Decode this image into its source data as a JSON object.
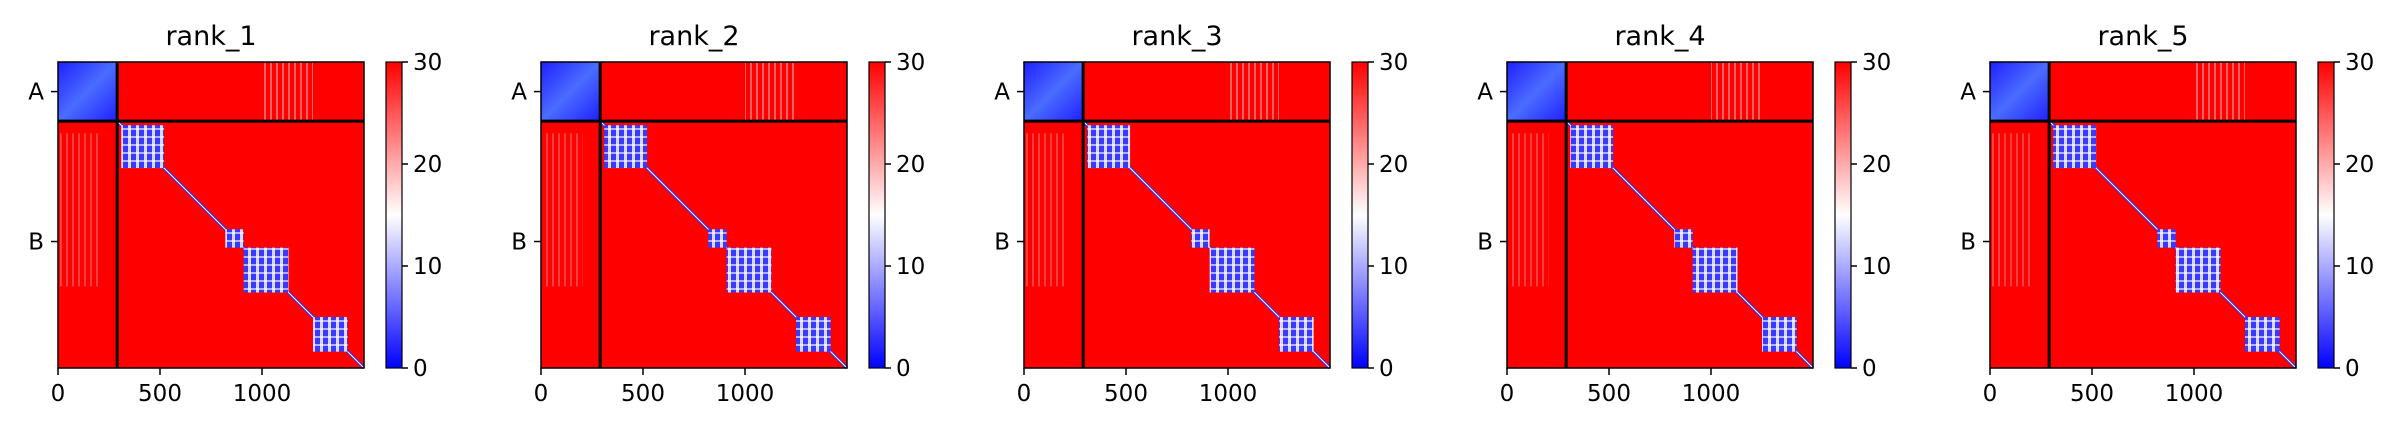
{
  "chart_data": {
    "type": "heatmap",
    "colormap": {
      "colors": [
        "#0000ff",
        "#ffffff",
        "#ff0000"
      ],
      "vmin": 0,
      "vmax": 30,
      "colorbar_ticks": [
        "0",
        "10",
        "20",
        "30"
      ]
    },
    "grid": false,
    "extent": [
      0,
      1500
    ],
    "chain_boundary": 290,
    "x_ticks": [
      {
        "value": 0,
        "label": "0"
      },
      {
        "value": 500,
        "label": "500"
      },
      {
        "value": 1000,
        "label": "1000"
      }
    ],
    "y_chain_labels": [
      {
        "center": 145,
        "label": "A"
      },
      {
        "center": 880,
        "label": "B"
      }
    ],
    "panels": [
      {
        "title": "rank_1"
      },
      {
        "title": "rank_2"
      },
      {
        "title": "rank_3"
      },
      {
        "title": "rank_4"
      },
      {
        "title": "rank_5"
      }
    ],
    "low_distance_blocks": [
      {
        "start": 0,
        "end": 290
      },
      {
        "start": 310,
        "end": 520
      },
      {
        "start": 820,
        "end": 910
      },
      {
        "start": 910,
        "end": 1130
      },
      {
        "start": 1250,
        "end": 1420
      }
    ]
  }
}
